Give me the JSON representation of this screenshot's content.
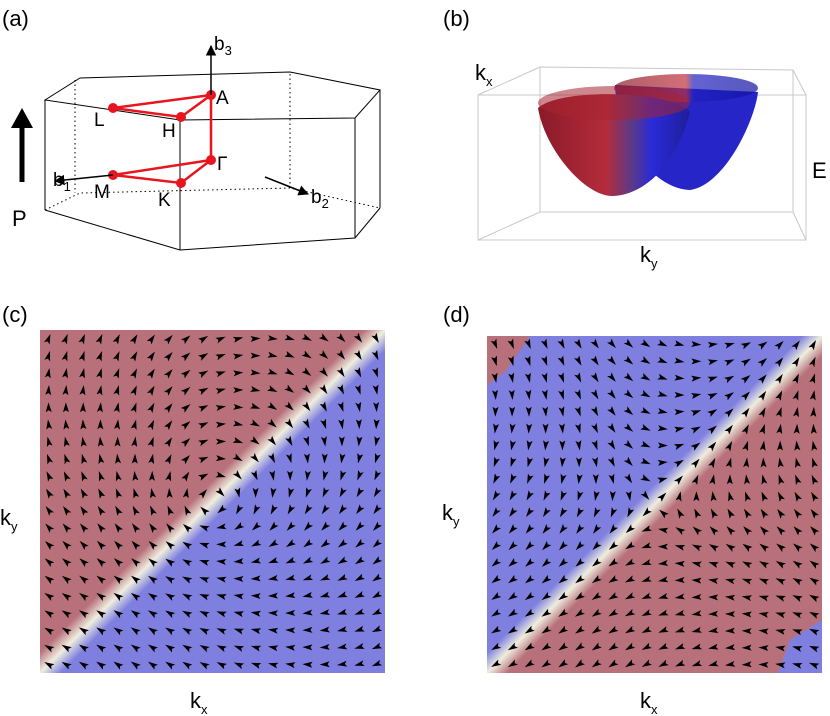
{
  "panel_a": {
    "label": "(a)",
    "points": {
      "L": "L",
      "H": "H",
      "A": "A",
      "M": "M",
      "K": "K",
      "G": "Γ"
    },
    "b1": {
      "main": "b",
      "sub": "1"
    },
    "b2": {
      "main": "b",
      "sub": "2"
    },
    "b3": {
      "main": "b",
      "sub": "3"
    },
    "P": "P"
  },
  "panel_b": {
    "label": "(b)",
    "kx": {
      "main": "k",
      "sub": "x"
    },
    "ky": {
      "main": "k",
      "sub": "y"
    },
    "E": "E"
  },
  "panel_c": {
    "label": "(c)",
    "kx": {
      "main": "k",
      "sub": "x"
    },
    "ky": {
      "main": "k",
      "sub": "y"
    }
  },
  "panel_d": {
    "label": "(d)",
    "kx": {
      "main": "k",
      "sub": "x"
    },
    "ky": {
      "main": "k",
      "sub": "y"
    }
  }
}
